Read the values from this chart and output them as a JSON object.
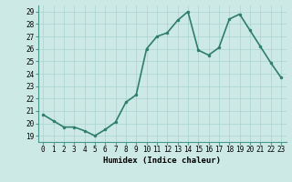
{
  "x": [
    0,
    1,
    2,
    3,
    4,
    5,
    6,
    7,
    8,
    9,
    10,
    11,
    12,
    13,
    14,
    15,
    16,
    17,
    18,
    19,
    20,
    21,
    22,
    23
  ],
  "y": [
    20.7,
    20.2,
    19.7,
    19.7,
    19.4,
    19.0,
    19.5,
    20.1,
    21.7,
    22.3,
    26.0,
    27.0,
    27.3,
    28.3,
    29.0,
    25.9,
    25.5,
    26.1,
    28.4,
    28.8,
    27.5,
    26.2,
    24.9,
    23.7
  ],
  "line_color": "#2e7d6e",
  "marker": "o",
  "marker_size": 2.0,
  "line_width": 1.2,
  "bg_color": "#cce9e5",
  "grid_color": "#aad4cf",
  "xlabel": "Humidex (Indice chaleur)",
  "xlim": [
    -0.5,
    23.5
  ],
  "ylim": [
    18.5,
    29.5
  ],
  "yticks": [
    19,
    20,
    21,
    22,
    23,
    24,
    25,
    26,
    27,
    28,
    29
  ],
  "xticks": [
    0,
    1,
    2,
    3,
    4,
    5,
    6,
    7,
    8,
    9,
    10,
    11,
    12,
    13,
    14,
    15,
    16,
    17,
    18,
    19,
    20,
    21,
    22,
    23
  ],
  "tick_fontsize": 5.5,
  "label_fontsize": 6.5
}
